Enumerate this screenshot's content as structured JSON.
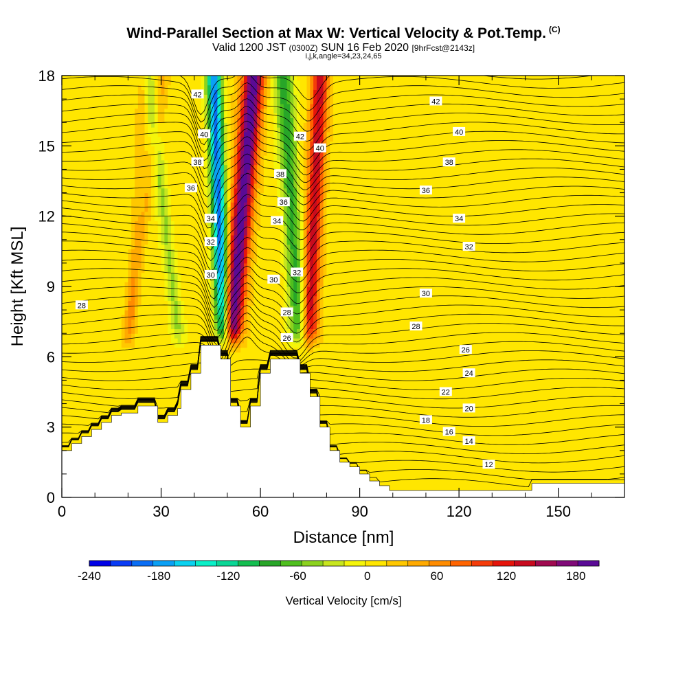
{
  "header": {
    "title": "Wind-Parallel Section at Max W: Vertical Velocity & Pot.Temp.",
    "copyright": "(C)",
    "valid_prefix": "Valid 1200 JST",
    "valid_zulu": "(0300Z)",
    "valid_date": "SUN 16 Feb 2020",
    "forecast": "[9hrFcst@2143z]",
    "params": "i,j,k,angle=34,23,24,65"
  },
  "chart_data": {
    "type": "heatmap",
    "xlabel": "Distance [nm]",
    "ylabel": "Height [Kft MSL]",
    "xlim": [
      0,
      170
    ],
    "ylim": [
      0,
      18
    ],
    "x_ticks": [
      0,
      30,
      60,
      90,
      120,
      150
    ],
    "y_ticks": [
      0,
      3,
      6,
      9,
      12,
      15,
      18
    ],
    "colorbar": {
      "title": "Vertical Velocity [cm/s]",
      "range": [
        -240,
        200
      ],
      "ticks": [
        -240,
        -180,
        -120,
        -60,
        0,
        60,
        120,
        180
      ],
      "colors": [
        "#0000e6",
        "#0a3cf5",
        "#0a6ef5",
        "#0aa0f5",
        "#0ad2f0",
        "#0af0c8",
        "#0ad796",
        "#14be50",
        "#28a628",
        "#4fbf1e",
        "#8cd21e",
        "#c8e61e",
        "#f5f50a",
        "#ffe600",
        "#ffc800",
        "#ffaa00",
        "#ff8c00",
        "#ff6400",
        "#f53c0a",
        "#e6140a",
        "#c80a1e",
        "#a00a50",
        "#800a78",
        "#5a0a96"
      ]
    },
    "terrain": [
      [
        0,
        2
      ],
      [
        3,
        2
      ],
      [
        3,
        2.3
      ],
      [
        6,
        2.3
      ],
      [
        6,
        2.6
      ],
      [
        9,
        2.6
      ],
      [
        9,
        2.9
      ],
      [
        12,
        2.9
      ],
      [
        12,
        3.2
      ],
      [
        15,
        3.2
      ],
      [
        15,
        3.5
      ],
      [
        18,
        3.5
      ],
      [
        18,
        3.6
      ],
      [
        23,
        3.6
      ],
      [
        23,
        3.9
      ],
      [
        29,
        3.9
      ],
      [
        29,
        3.2
      ],
      [
        32,
        3.2
      ],
      [
        32,
        3.5
      ],
      [
        35,
        3.5
      ],
      [
        35,
        3.8
      ],
      [
        36,
        3.8
      ],
      [
        36,
        4.6
      ],
      [
        39,
        4.6
      ],
      [
        39,
        5.3
      ],
      [
        42,
        5.3
      ],
      [
        42,
        6.5
      ],
      [
        48,
        6.5
      ],
      [
        48,
        5.9
      ],
      [
        51,
        5.9
      ],
      [
        51,
        3.9
      ],
      [
        54,
        3.9
      ],
      [
        54,
        3
      ],
      [
        57,
        3
      ],
      [
        57,
        3.9
      ],
      [
        60,
        3.9
      ],
      [
        60,
        5.3
      ],
      [
        63,
        5.3
      ],
      [
        63,
        5.9
      ],
      [
        72,
        5.9
      ],
      [
        72,
        5.3
      ],
      [
        75,
        5.3
      ],
      [
        75,
        4.3
      ],
      [
        78,
        4.3
      ],
      [
        78,
        3
      ],
      [
        81,
        3
      ],
      [
        81,
        2
      ],
      [
        84,
        2
      ],
      [
        84,
        1.5
      ],
      [
        87,
        1.5
      ],
      [
        87,
        1.3
      ],
      [
        90,
        1.3
      ],
      [
        90,
        1
      ],
      [
        93,
        1
      ],
      [
        93,
        0.7
      ],
      [
        96,
        0.7
      ],
      [
        96,
        0.5
      ],
      [
        99,
        0.5
      ],
      [
        99,
        0.3
      ],
      [
        142,
        0.3
      ],
      [
        142,
        0.6
      ],
      [
        170,
        0.6
      ],
      [
        170,
        0
      ]
    ],
    "updrafts": [
      {
        "x_top": 58,
        "x_bot": 50.5,
        "half_width": 3.2,
        "peak_w": 190
      },
      {
        "x_top": 78,
        "x_bot": 74.5,
        "half_width": 2.5,
        "peak_w": 130
      },
      {
        "x_top": 31,
        "x_bot": 19,
        "half_width": 1.8,
        "peak_w": 30
      },
      {
        "x_top": 25,
        "x_bot": 20,
        "half_width": 1.5,
        "peak_w": 25
      }
    ],
    "downdrafts": [
      {
        "x_top": 46,
        "x_bot": 49,
        "half_width": 2.2,
        "peak_w": -200
      },
      {
        "x_top": 67,
        "x_bot": 72,
        "half_width": 2.8,
        "peak_w": -90
      },
      {
        "x_top": 26,
        "x_bot": 36,
        "half_width": 2.0,
        "peak_w": -50
      }
    ],
    "isentrope_labels": [
      {
        "text": "42",
        "x": 41,
        "y": 17.2
      },
      {
        "text": "40",
        "x": 43,
        "y": 15.5
      },
      {
        "text": "38",
        "x": 41,
        "y": 14.3
      },
      {
        "text": "36",
        "x": 39,
        "y": 13.2
      },
      {
        "text": "34",
        "x": 45,
        "y": 11.9
      },
      {
        "text": "32",
        "x": 45,
        "y": 10.9
      },
      {
        "text": "30",
        "x": 45,
        "y": 9.5
      },
      {
        "text": "28",
        "x": 6,
        "y": 8.2
      },
      {
        "text": "42",
        "x": 72,
        "y": 15.4
      },
      {
        "text": "40",
        "x": 78,
        "y": 14.9
      },
      {
        "text": "38",
        "x": 66,
        "y": 13.8
      },
      {
        "text": "36",
        "x": 67,
        "y": 12.6
      },
      {
        "text": "34",
        "x": 65,
        "y": 11.8
      },
      {
        "text": "30",
        "x": 64,
        "y": 9.3
      },
      {
        "text": "32",
        "x": 71,
        "y": 9.6
      },
      {
        "text": "28",
        "x": 68,
        "y": 7.9
      },
      {
        "text": "26",
        "x": 68,
        "y": 6.8
      },
      {
        "text": "42",
        "x": 113,
        "y": 16.9
      },
      {
        "text": "40",
        "x": 120,
        "y": 15.6
      },
      {
        "text": "38",
        "x": 117,
        "y": 14.3
      },
      {
        "text": "36",
        "x": 110,
        "y": 13.1
      },
      {
        "text": "34",
        "x": 120,
        "y": 11.9
      },
      {
        "text": "32",
        "x": 123,
        "y": 10.7
      },
      {
        "text": "30",
        "x": 110,
        "y": 8.7
      },
      {
        "text": "28",
        "x": 107,
        "y": 7.3
      },
      {
        "text": "26",
        "x": 122,
        "y": 6.3
      },
      {
        "text": "24",
        "x": 123,
        "y": 5.3
      },
      {
        "text": "22",
        "x": 116,
        "y": 4.5
      },
      {
        "text": "20",
        "x": 123,
        "y": 3.8
      },
      {
        "text": "18",
        "x": 110,
        "y": 3.3
      },
      {
        "text": "16",
        "x": 117,
        "y": 2.8
      },
      {
        "text": "14",
        "x": 123,
        "y": 2.4
      },
      {
        "text": "12",
        "x": 129,
        "y": 1.4
      }
    ]
  }
}
